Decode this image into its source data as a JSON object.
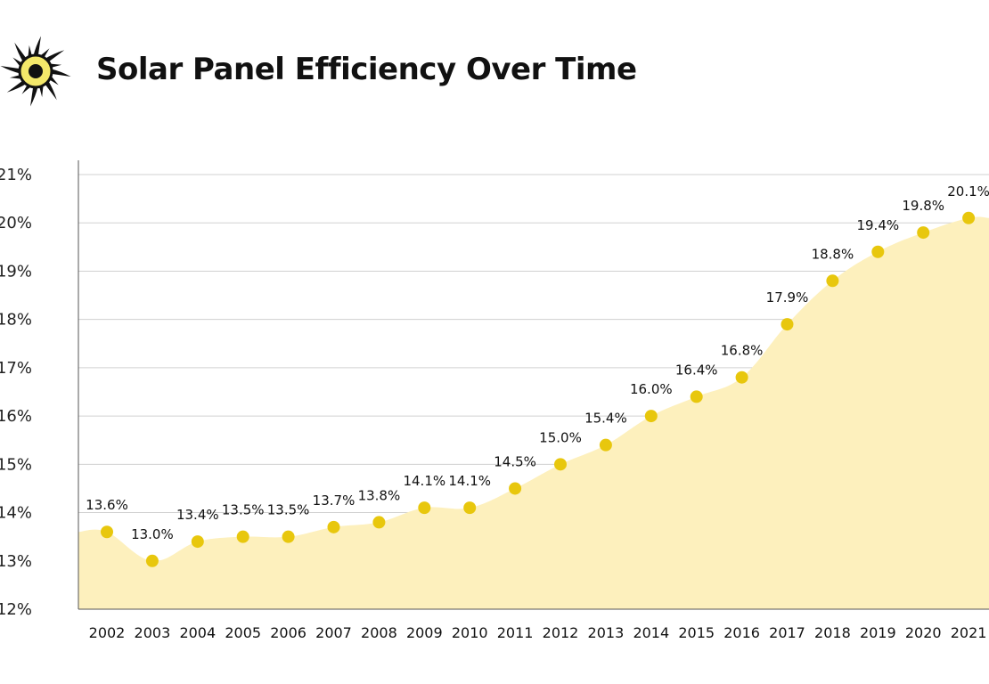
{
  "header": {
    "title": "Solar Panel Efficiency Over Time",
    "logo_icon": "sun-icon"
  },
  "colors": {
    "fill": "#fdf0bd",
    "point": "#e8c70d",
    "grid": "#d0d0d0",
    "axis": "#555555",
    "sun_rays": "#111111",
    "sun_core": "#f3e86a"
  },
  "chart_data": {
    "type": "area",
    "title": "Solar Panel Efficiency Over Time",
    "xlabel": "",
    "ylabel": "",
    "categories": [
      "2002",
      "2003",
      "2004",
      "2005",
      "2006",
      "2007",
      "2008",
      "2009",
      "2010",
      "2011",
      "2012",
      "2013",
      "2014",
      "2015",
      "2016",
      "2017",
      "2018",
      "2019",
      "2020",
      "2021"
    ],
    "values": [
      13.6,
      13.0,
      13.4,
      13.5,
      13.5,
      13.7,
      13.8,
      14.1,
      14.1,
      14.5,
      15.0,
      15.4,
      16.0,
      16.4,
      16.8,
      17.9,
      18.8,
      19.4,
      19.8,
      20.1
    ],
    "value_labels": [
      "13.6%",
      "13.0%",
      "13.4%",
      "13.5%",
      "13.5%",
      "13.7%",
      "13.8%",
      "14.1%",
      "14.1%",
      "14.5%",
      "15.0%",
      "15.4%",
      "16.0%",
      "16.4%",
      "16.8%",
      "17.9%",
      "18.8%",
      "19.4%",
      "19.8%",
      "20.1%"
    ],
    "ylim": [
      12,
      21
    ],
    "yticks": [
      12,
      13,
      14,
      15,
      16,
      17,
      18,
      19,
      20,
      21
    ],
    "ytick_labels": [
      "12%",
      "13%",
      "14%",
      "15%",
      "16%",
      "17%",
      "18%",
      "19%",
      "20%",
      "21%"
    ],
    "grid": true,
    "legend": "none"
  }
}
